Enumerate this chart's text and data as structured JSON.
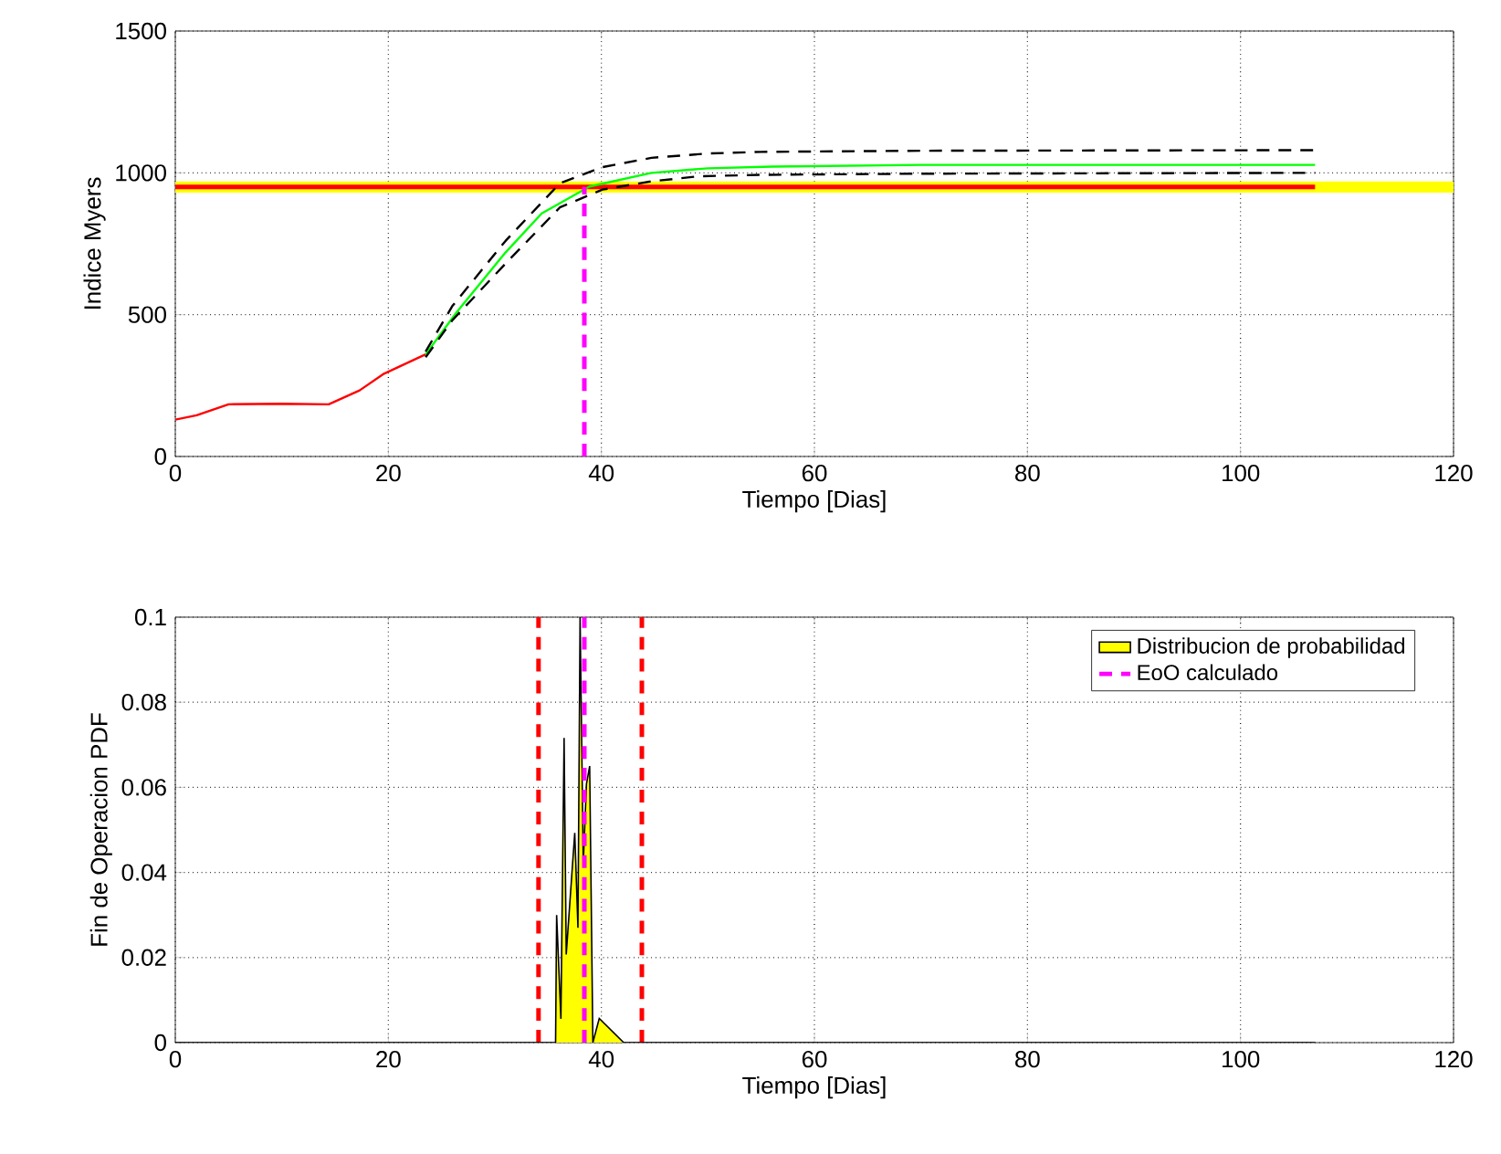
{
  "chart_data": [
    {
      "type": "line",
      "xlabel": "Tiempo [Dias]",
      "ylabel": "Indice Myers",
      "xlim": [
        0,
        120
      ],
      "xticks": [
        0,
        20,
        40,
        60,
        80,
        100,
        120
      ],
      "ylim": [
        0,
        1500
      ],
      "yticks": [
        0,
        500,
        1000,
        1500
      ],
      "grid": true,
      "bands": [
        {
          "axis": "y",
          "from": 930,
          "to": 970,
          "color": "#ffff00"
        }
      ],
      "series": [
        {
          "color": "#ff0000",
          "x": [
            0,
            2,
            5,
            10,
            14.4,
            17.3,
            19.5,
            23.5
          ],
          "values": [
            130,
            145,
            184,
            186,
            184,
            233,
            290,
            360
          ],
          "line_style": "solid"
        },
        {
          "color": "#ff0000",
          "x": [
            0,
            107
          ],
          "values": [
            950,
            950
          ],
          "line_style": "solid"
        },
        {
          "color": "#00ff00",
          "x": [
            23.5,
            26.4,
            31,
            34.4,
            38.9,
            44.7,
            50,
            56,
            70,
            107
          ],
          "values": [
            360,
            508,
            719,
            857,
            952,
            1000,
            1016,
            1022,
            1028,
            1028
          ],
          "line_style": "solid"
        },
        {
          "color": "#000000",
          "x": [
            23.5,
            26,
            31,
            36.1,
            40.1,
            44.7,
            49.9,
            55,
            70,
            107
          ],
          "values": [
            370,
            530,
            760,
            963,
            1020,
            1053,
            1068,
            1074,
            1078,
            1080
          ],
          "line_style": "dashed"
        },
        {
          "color": "#000000",
          "x": [
            23.5,
            26,
            31,
            36.1,
            40.1,
            44.7,
            49.2,
            55,
            70,
            107
          ],
          "values": [
            350,
            480,
            680,
            878,
            941,
            970,
            988,
            993,
            997,
            1000
          ],
          "line_style": "dashed"
        },
        {
          "color": "#ff00ff",
          "x": [
            38.4,
            38.4
          ],
          "values": [
            0,
            950
          ],
          "line_style": "dashed"
        }
      ]
    },
    {
      "type": "area",
      "xlabel": "Tiempo [Dias]",
      "ylabel": "Fin de Operacion PDF",
      "xlim": [
        0,
        120
      ],
      "xticks": [
        0,
        20,
        40,
        60,
        80,
        100,
        120
      ],
      "ylim": [
        0,
        0.1
      ],
      "yticks": [
        0,
        0.02,
        0.04,
        0.06,
        0.08,
        0.1
      ],
      "grid": true,
      "legend": "top right",
      "ref_lines": [
        {
          "axis": "x",
          "value": 34.1,
          "color": "#ff0000",
          "line_style": "dashed"
        },
        {
          "axis": "x",
          "value": 43.8,
          "color": "#ff0000",
          "line_style": "dashed"
        }
      ],
      "series": [
        {
          "name": "Distribucion de probabilidad",
          "type": "area",
          "color": "#ffff00",
          "x": [
            0,
            35.7,
            35.8,
            36.2,
            36.5,
            36.7,
            37.5,
            37.8,
            38.0,
            38.3,
            38.6,
            38.9,
            39.2,
            39.8,
            42.1,
            107
          ],
          "values": [
            0,
            0,
            0.03,
            0.0056,
            0.0716,
            0.0207,
            0.0493,
            0.027,
            0.1,
            0.042,
            0.0608,
            0.065,
            0,
            0.0057,
            0,
            0
          ]
        },
        {
          "name": "EoO calculado",
          "type": "line",
          "color": "#ff00ff",
          "x": [
            38.4,
            38.4
          ],
          "values": [
            0,
            0.1
          ],
          "line_style": "dashed"
        }
      ]
    }
  ]
}
